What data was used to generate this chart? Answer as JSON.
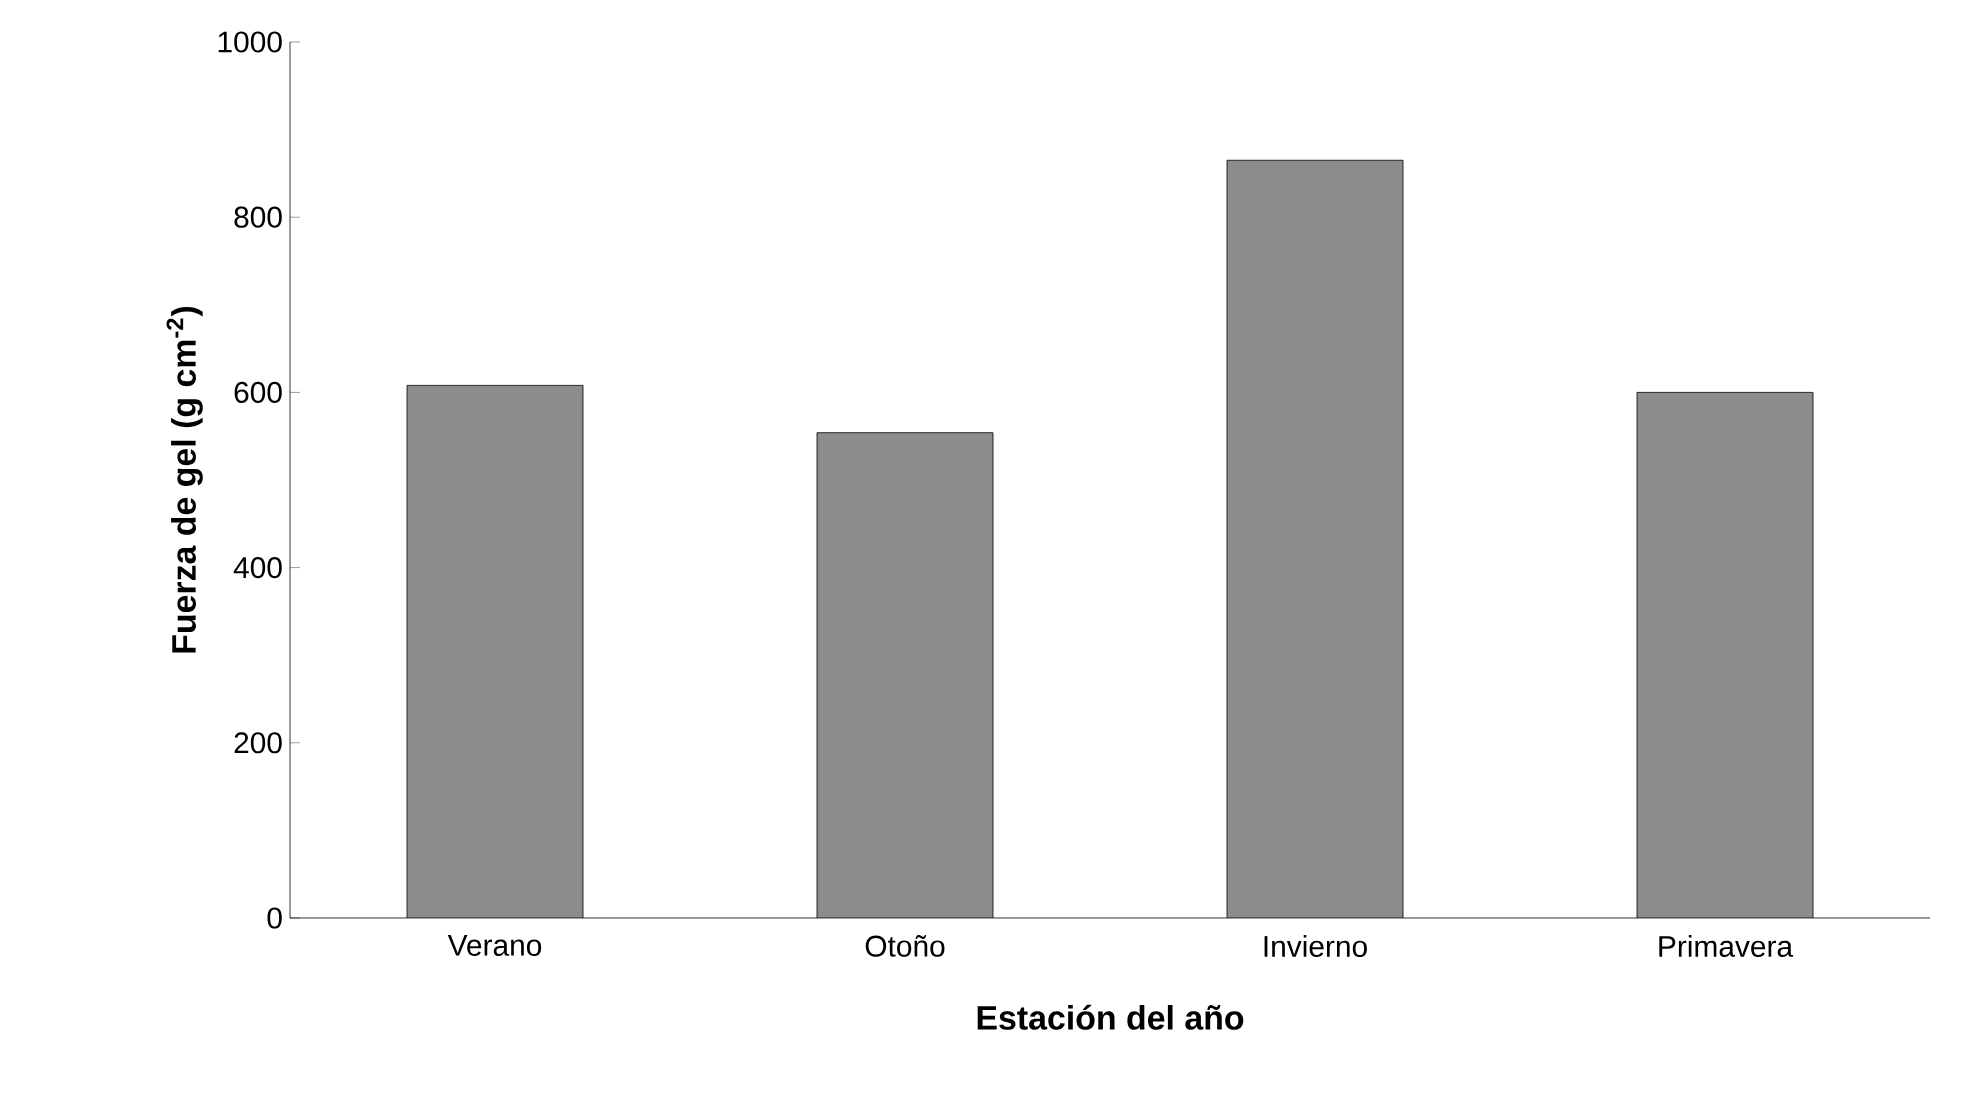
{
  "chart_data": {
    "type": "bar",
    "xlabel": "Estación del año",
    "ylabel": "Fuerza de gel (g cm$^{-2}$)",
    "categories": [
      "Verano",
      "Otoño",
      "Invierno",
      "Primavera"
    ],
    "values": [
      608,
      554,
      865,
      600
    ],
    "color": "#8c8c8c",
    "ylim": [
      0,
      1000
    ],
    "yticks": [
      0,
      200,
      400,
      600,
      800,
      1000
    ],
    "grid": false
  }
}
